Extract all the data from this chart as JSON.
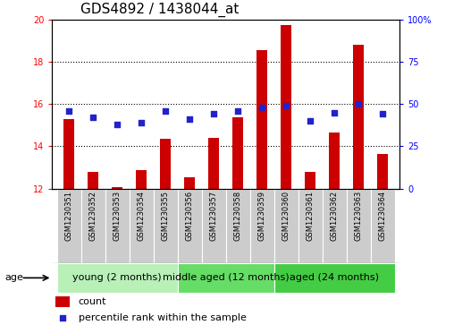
{
  "title": "GDS4892 / 1438044_at",
  "samples": [
    "GSM1230351",
    "GSM1230352",
    "GSM1230353",
    "GSM1230354",
    "GSM1230355",
    "GSM1230356",
    "GSM1230357",
    "GSM1230358",
    "GSM1230359",
    "GSM1230360",
    "GSM1230361",
    "GSM1230362",
    "GSM1230363",
    "GSM1230364"
  ],
  "count_values": [
    15.3,
    12.8,
    12.05,
    12.85,
    14.35,
    12.55,
    14.4,
    15.35,
    18.55,
    19.75,
    12.8,
    14.65,
    18.8,
    13.65
  ],
  "percentile_values": [
    46,
    42,
    38,
    39,
    46,
    41,
    44,
    46,
    48,
    49,
    40,
    45,
    50,
    44
  ],
  "ylim_left": [
    12,
    20
  ],
  "ylim_right": [
    0,
    100
  ],
  "yticks_left": [
    12,
    14,
    16,
    18,
    20
  ],
  "yticks_right": [
    0,
    25,
    50,
    75,
    100
  ],
  "bar_color": "#cc0000",
  "dot_color": "#2222cc",
  "groups": [
    {
      "label": "young (2 months)",
      "start": 0,
      "end": 5,
      "color": "#b8f0b8"
    },
    {
      "label": "middle aged (12 months)",
      "start": 5,
      "end": 9,
      "color": "#66dd66"
    },
    {
      "label": "aged (24 months)",
      "start": 9,
      "end": 14,
      "color": "#44cc44"
    }
  ],
  "age_label": "age",
  "legend_count_label": "count",
  "legend_percentile_label": "percentile rank within the sample",
  "title_fontsize": 11,
  "tick_fontsize": 7,
  "group_fontsize": 8,
  "legend_fontsize": 8,
  "grid_color": "#000000",
  "background_color": "#ffffff",
  "plot_bg_color": "#ffffff",
  "xtick_bg": "#cccccc",
  "right_tick_label_100": "100%"
}
